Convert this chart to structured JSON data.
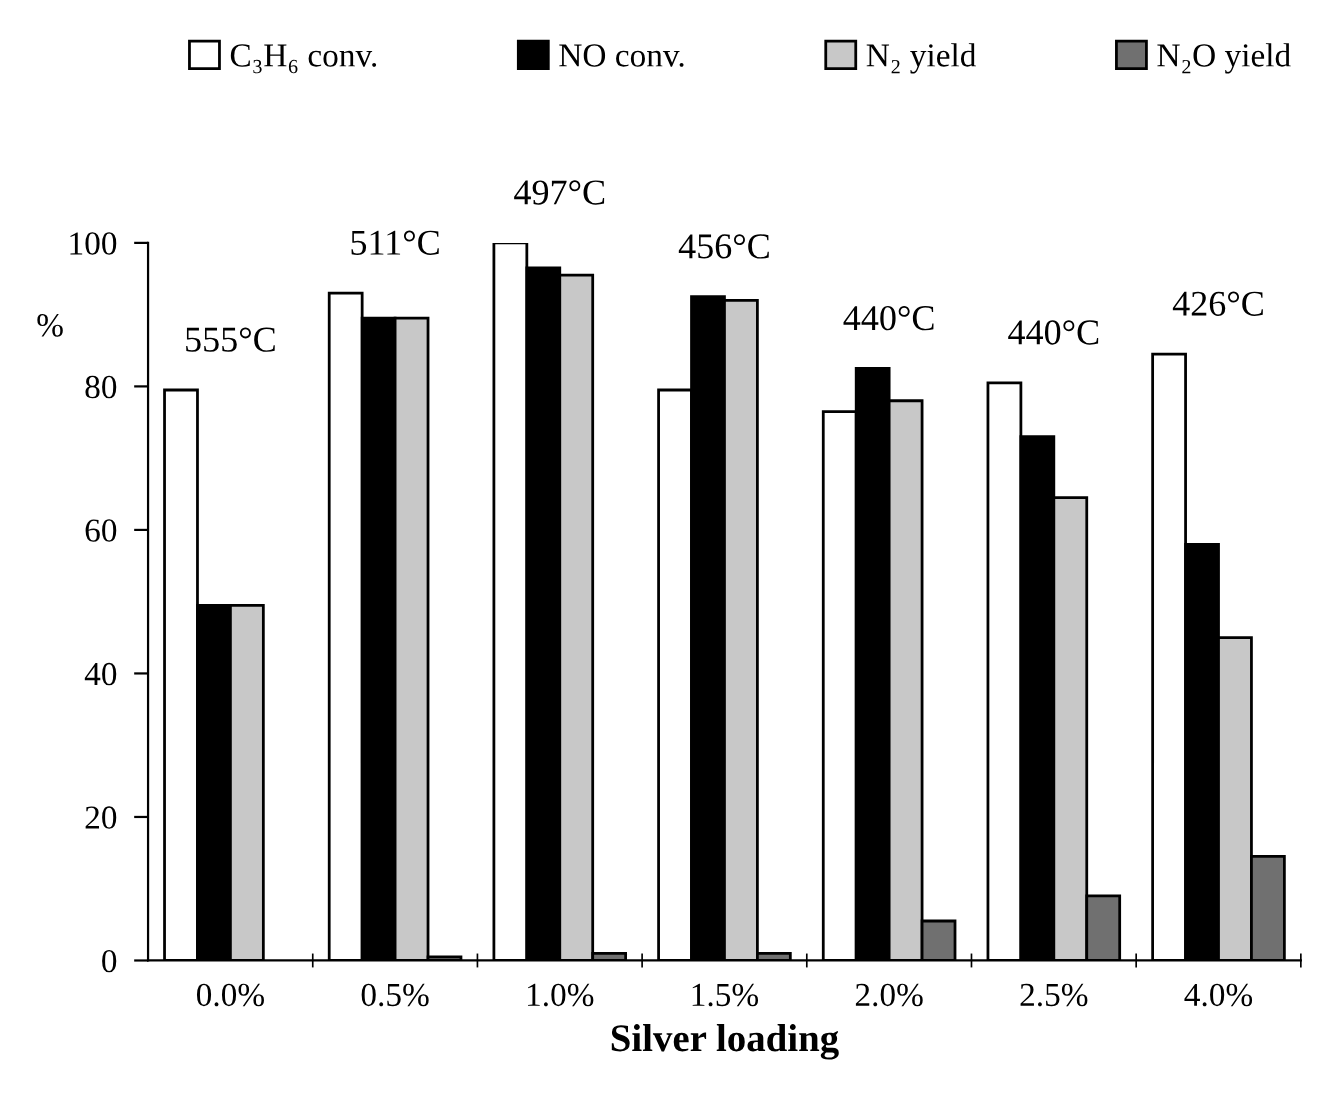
{
  "chart_data": {
    "type": "bar",
    "xlabel": "Silver loading",
    "ylabel": "%",
    "categories": [
      "0.0%",
      "0.5%",
      "1.0%",
      "1.5%",
      "2.0%",
      "2.5%",
      "4.0%"
    ],
    "series": [
      {
        "name": "C₃H₆ conv.",
        "color": "#ffffff",
        "values": [
          79.5,
          93,
          100,
          79.5,
          76.5,
          80.5,
          84.5
        ]
      },
      {
        "name": "NO conv.",
        "color": "#000000",
        "values": [
          49.5,
          89.5,
          96.5,
          92.5,
          82.5,
          73,
          58
        ]
      },
      {
        "name": "N₂ yield",
        "color": "#c8c8c8",
        "values": [
          49.5,
          89.5,
          95.5,
          92,
          78,
          64.5,
          45
        ]
      },
      {
        "name": "N₂O yield",
        "color": "#707070",
        "values": [
          0,
          0.5,
          1,
          1,
          5.5,
          9,
          14.5
        ]
      }
    ],
    "ylim": [
      0,
      100
    ],
    "yticks": [
      0,
      20,
      40,
      60,
      80,
      100
    ],
    "annotations": [
      "555°C",
      "511°C",
      "497°C",
      "456°C",
      "440°C",
      "440°C",
      "426°C"
    ],
    "legend": "top",
    "grid": false
  }
}
